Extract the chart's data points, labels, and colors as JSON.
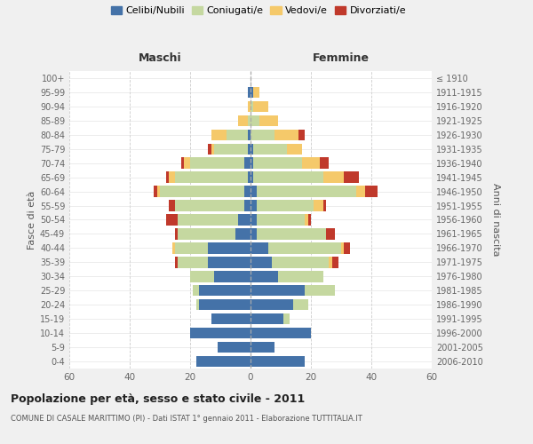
{
  "age_groups": [
    "0-4",
    "5-9",
    "10-14",
    "15-19",
    "20-24",
    "25-29",
    "30-34",
    "35-39",
    "40-44",
    "45-49",
    "50-54",
    "55-59",
    "60-64",
    "65-69",
    "70-74",
    "75-79",
    "80-84",
    "85-89",
    "90-94",
    "95-99",
    "100+"
  ],
  "birth_years": [
    "2006-2010",
    "2001-2005",
    "1996-2000",
    "1991-1995",
    "1986-1990",
    "1981-1985",
    "1976-1980",
    "1971-1975",
    "1966-1970",
    "1961-1965",
    "1956-1960",
    "1951-1955",
    "1946-1950",
    "1941-1945",
    "1936-1940",
    "1931-1935",
    "1926-1930",
    "1921-1925",
    "1916-1920",
    "1911-1915",
    "≤ 1910"
  ],
  "maschi": {
    "celibi": [
      18,
      11,
      20,
      13,
      17,
      17,
      12,
      14,
      14,
      5,
      4,
      2,
      2,
      1,
      2,
      1,
      1,
      0,
      0,
      1,
      0
    ],
    "coniugati": [
      0,
      0,
      0,
      0,
      1,
      2,
      8,
      10,
      11,
      19,
      20,
      23,
      28,
      24,
      18,
      11,
      7,
      1,
      0,
      0,
      0
    ],
    "vedovi": [
      0,
      0,
      0,
      0,
      0,
      0,
      0,
      0,
      1,
      0,
      0,
      0,
      1,
      2,
      2,
      1,
      5,
      3,
      1,
      0,
      0
    ],
    "divorziati": [
      0,
      0,
      0,
      0,
      0,
      0,
      0,
      1,
      0,
      1,
      4,
      2,
      1,
      1,
      1,
      1,
      0,
      0,
      0,
      0,
      0
    ]
  },
  "femmine": {
    "nubili": [
      18,
      8,
      20,
      11,
      14,
      18,
      9,
      7,
      6,
      2,
      2,
      2,
      2,
      1,
      1,
      1,
      0,
      0,
      0,
      1,
      0
    ],
    "coniugate": [
      0,
      0,
      0,
      2,
      5,
      10,
      15,
      19,
      24,
      23,
      16,
      19,
      33,
      23,
      16,
      11,
      8,
      3,
      1,
      0,
      0
    ],
    "vedove": [
      0,
      0,
      0,
      0,
      0,
      0,
      0,
      1,
      1,
      0,
      1,
      3,
      3,
      7,
      6,
      5,
      8,
      6,
      5,
      2,
      0
    ],
    "divorziate": [
      0,
      0,
      0,
      0,
      0,
      0,
      0,
      2,
      2,
      3,
      1,
      1,
      4,
      5,
      3,
      0,
      2,
      0,
      0,
      0,
      0
    ]
  },
  "colors": {
    "celibi": "#4472a8",
    "coniugati": "#c5d8a0",
    "vedovi": "#f5c96a",
    "divorziati": "#c0392b"
  },
  "xlim": 60,
  "title": "Popolazione per età, sesso e stato civile - 2011",
  "subtitle": "COMUNE DI CASALE MARITTIMO (PI) - Dati ISTAT 1° gennaio 2011 - Elaborazione TUTTITALIA.IT",
  "ylabel": "Fasce di età",
  "ylabel_right": "Anni di nascita",
  "xlabel_left": "Maschi",
  "xlabel_right": "Femmine",
  "bg_color": "#f0f0f0",
  "plot_bg": "#ffffff"
}
